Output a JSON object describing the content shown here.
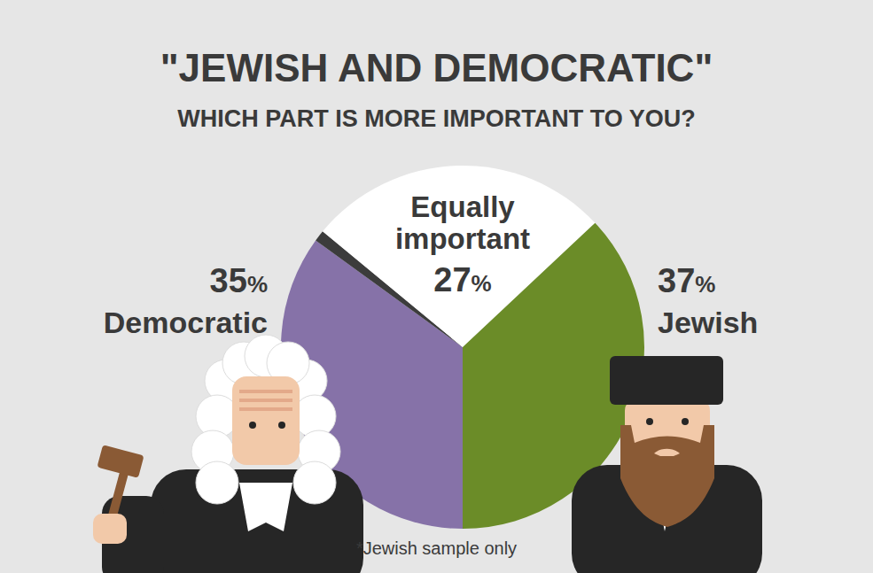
{
  "chart_data": {
    "type": "pie",
    "title": "\"JEWISH AND DEMOCRATIC\"",
    "subtitle": "WHICH PART IS MORE IMPORTANT TO YOU?",
    "categories": [
      "Democratic",
      null,
      "Equally important",
      "Jewish"
    ],
    "values": [
      35,
      1,
      27,
      37
    ],
    "value_labels": [
      "35%",
      null,
      "27%",
      "37%"
    ],
    "colors": [
      "#8672a8",
      "#3c3c3c",
      "#ffffff",
      "#6b8c28"
    ],
    "data_labels": true,
    "annotation": "*Jewish sample only"
  }
}
